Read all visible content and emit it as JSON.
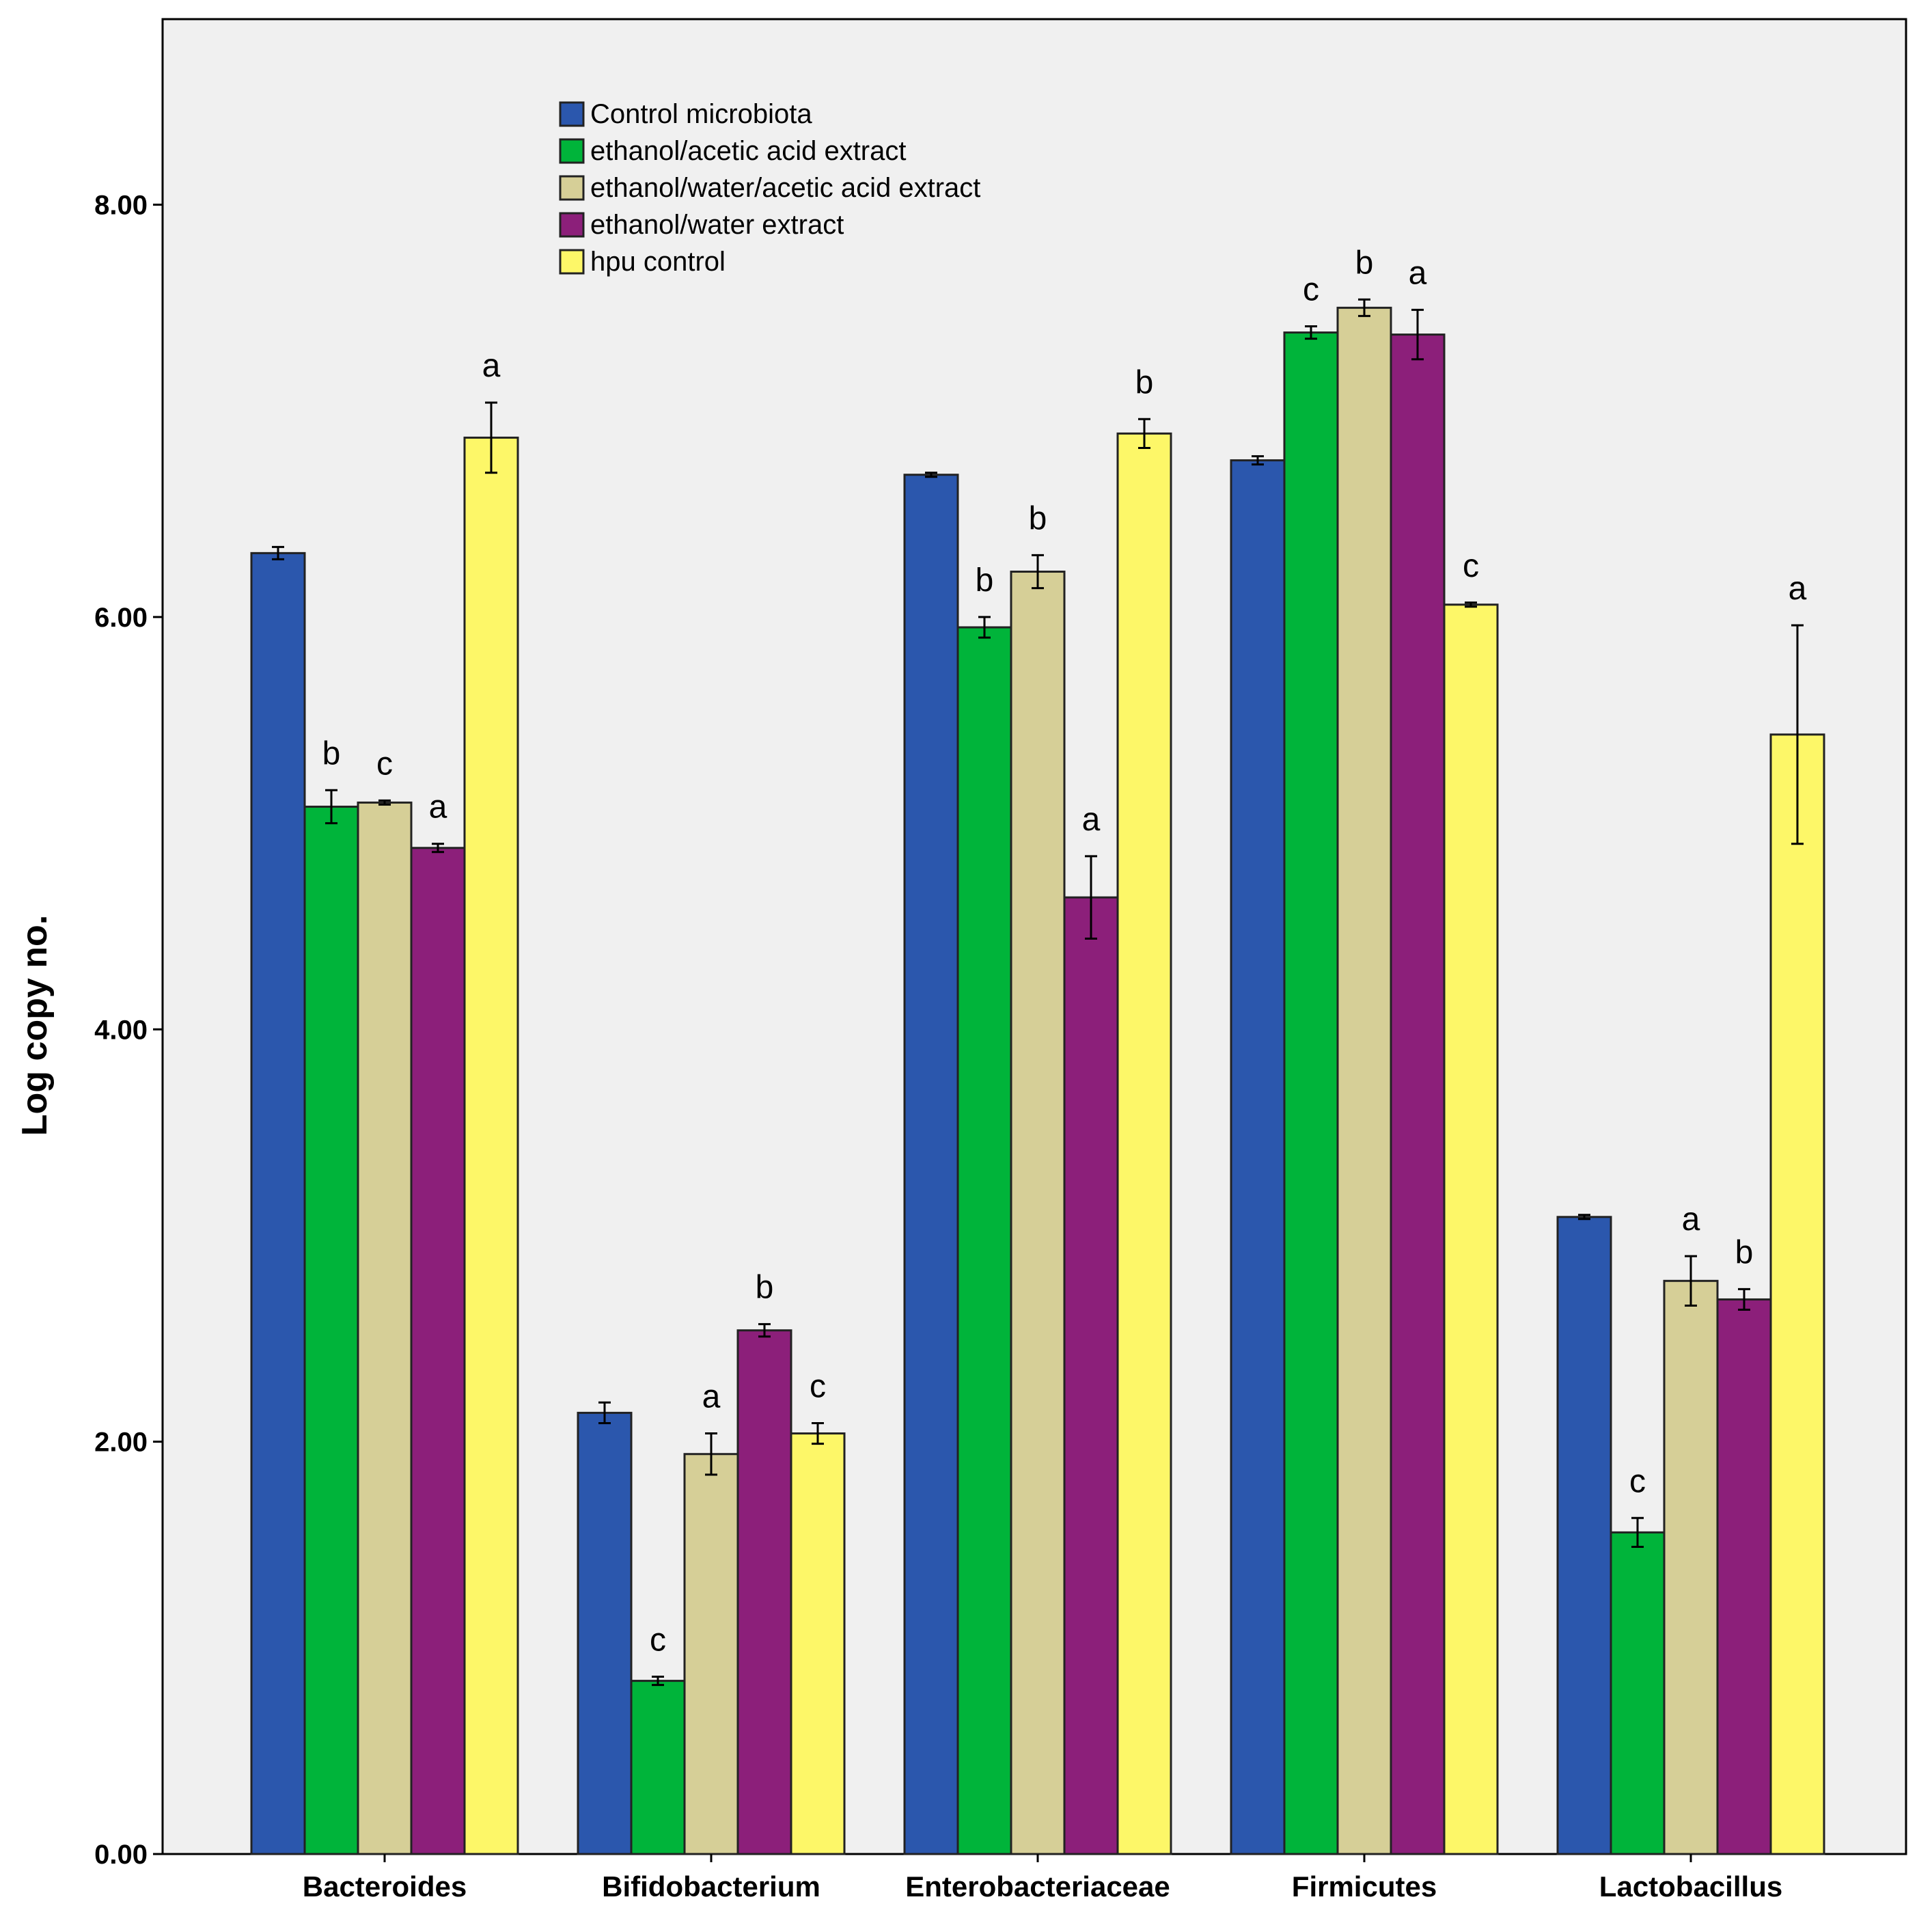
{
  "chart_data": {
    "type": "bar",
    "title": "",
    "xlabel": "",
    "ylabel": "Log copy no.",
    "ylim": [
      0,
      8.9
    ],
    "yticks": [
      0,
      2,
      4,
      6,
      8
    ],
    "ytick_labels": [
      "0.00",
      "2.00",
      "4.00",
      "6.00",
      "8.00"
    ],
    "grid": false,
    "legend_position": "top-center",
    "categories": [
      "Bacteroides",
      "Bifidobacterium",
      "Enterobacteriaceae",
      "Firmicutes",
      "Lactobacillus"
    ],
    "series": [
      {
        "name": "Control microbiota",
        "color": "#2b57ad",
        "values": [
          6.31,
          2.14,
          6.69,
          6.76,
          3.09
        ],
        "errors": [
          0.03,
          0.05,
          0.01,
          0.02,
          0.01
        ],
        "labels": [
          "",
          "",
          "",
          "",
          ""
        ]
      },
      {
        "name": "ethanol/acetic acid extract",
        "color": "#00b43a",
        "values": [
          5.08,
          0.84,
          5.95,
          7.38,
          1.56
        ],
        "errors": [
          0.08,
          0.02,
          0.05,
          0.03,
          0.07
        ],
        "labels": [
          "b",
          "c",
          "b",
          "c",
          "c"
        ]
      },
      {
        "name": "ethanol/water/acetic acid extract",
        "color": "#d6cf97",
        "values": [
          5.1,
          1.94,
          6.22,
          7.5,
          2.78
        ],
        "errors": [
          0.01,
          0.1,
          0.08,
          0.04,
          0.12
        ],
        "labels": [
          "c",
          "a",
          "b",
          "b",
          "a"
        ]
      },
      {
        "name": "ethanol/water extract",
        "color": "#8c1f7a",
        "values": [
          4.88,
          2.54,
          4.64,
          7.37,
          2.69
        ],
        "errors": [
          0.02,
          0.03,
          0.2,
          0.12,
          0.05
        ],
        "labels": [
          "a",
          "b",
          "a",
          "a",
          "b"
        ]
      },
      {
        "name": "hpu control",
        "color": "#fdf768",
        "values": [
          6.87,
          2.04,
          6.89,
          6.06,
          5.43
        ],
        "errors": [
          0.17,
          0.05,
          0.07,
          0.01,
          0.53
        ],
        "labels": [
          "a",
          "c",
          "b",
          "c",
          "a"
        ]
      }
    ]
  }
}
